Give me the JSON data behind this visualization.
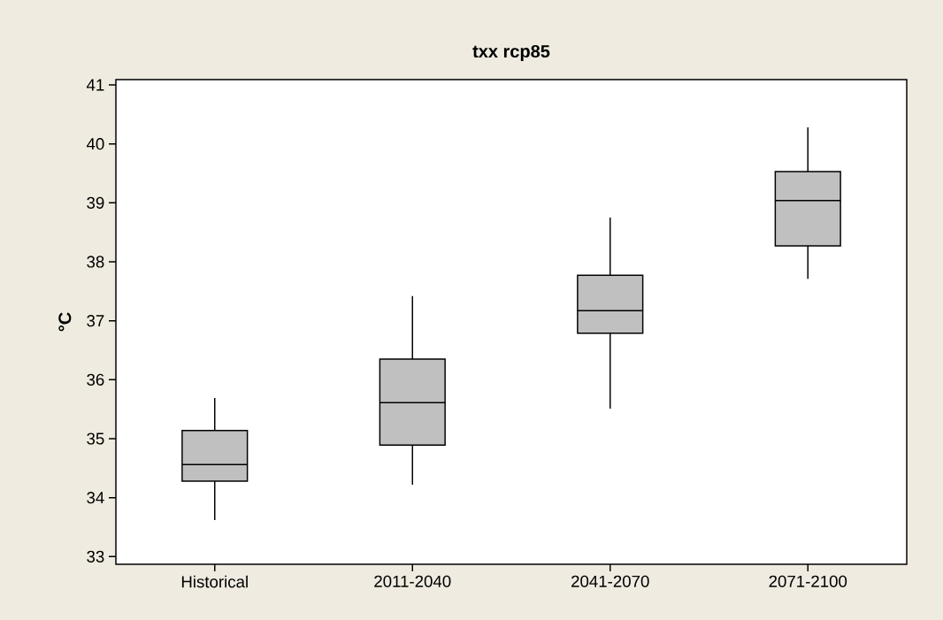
{
  "chart_data": {
    "type": "box",
    "title": "txx rcp85",
    "ylabel": "°C",
    "categories": [
      "Historical",
      "2011-2040",
      "2041-2070",
      "2071-2100"
    ],
    "boxes": [
      {
        "low": 33.62,
        "q1": 34.28,
        "median": 34.56,
        "q3": 35.14,
        "high": 35.69
      },
      {
        "low": 34.22,
        "q1": 34.89,
        "median": 35.61,
        "q3": 36.35,
        "high": 37.42
      },
      {
        "low": 35.51,
        "q1": 36.79,
        "median": 37.17,
        "q3": 37.77,
        "high": 38.75
      },
      {
        "low": 37.71,
        "q1": 38.27,
        "median": 39.04,
        "q3": 39.53,
        "high": 40.28
      }
    ],
    "color": "#c0c0c0",
    "ylim": [
      32.87,
      41.09
    ],
    "yticks": [
      33,
      34,
      35,
      36,
      37,
      38,
      39,
      40,
      41
    ]
  }
}
